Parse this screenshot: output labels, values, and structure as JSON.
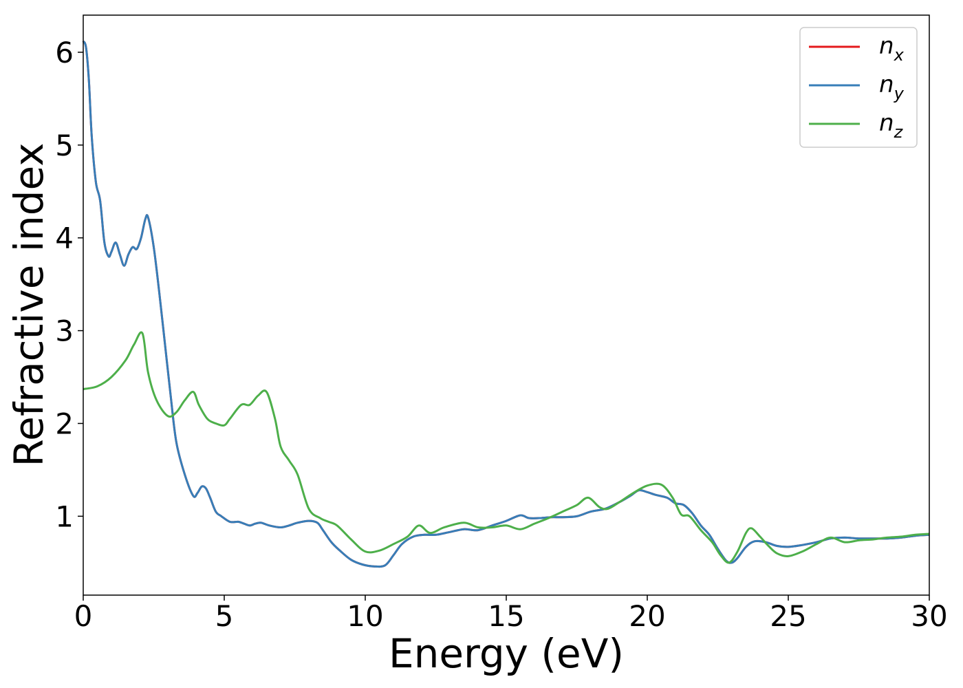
{
  "chart_data": {
    "type": "line",
    "xlabel": "Energy (eV)",
    "ylabel": "Refractive index",
    "xlim": [
      0,
      30
    ],
    "ylim": [
      0.15,
      6.4
    ],
    "xticks": [
      "0",
      "5",
      "10",
      "15",
      "20",
      "25",
      "30"
    ],
    "yticks": [
      "1",
      "2",
      "3",
      "4",
      "5",
      "6"
    ],
    "grid": false,
    "legend_position": "top-right",
    "legend": [
      {
        "symbol": "n",
        "subscript": "x",
        "color": "#e41a1c"
      },
      {
        "symbol": "n",
        "subscript": "y",
        "color": "#377eb8"
      },
      {
        "symbol": "n",
        "subscript": "z",
        "color": "#4daf4a"
      }
    ],
    "series": [
      {
        "name": "n_x",
        "color": "#e41a1c",
        "x": [
          0,
          0.1,
          0.2,
          0.3,
          0.45,
          0.6,
          0.75,
          0.9,
          1.0,
          1.15,
          1.3,
          1.45,
          1.6,
          1.75,
          1.9,
          2.05,
          2.2,
          2.3,
          2.5,
          2.7,
          2.9,
          3.1,
          3.3,
          3.6,
          3.9,
          4.05,
          4.2,
          4.35,
          4.5,
          4.7,
          4.9,
          5.2,
          5.5,
          5.7,
          5.9,
          6.1,
          6.3,
          6.6,
          7.0,
          7.3,
          7.6,
          8.0,
          8.3,
          8.5,
          8.8,
          9.1,
          9.5,
          9.9,
          10.3,
          10.7,
          11.0,
          11.3,
          11.7,
          12.1,
          12.5,
          13.0,
          13.5,
          14.0,
          14.5,
          15.0,
          15.5,
          15.8,
          16.2,
          16.6,
          17.0,
          17.5,
          18.0,
          18.5,
          19.0,
          19.4,
          19.7,
          20.0,
          20.3,
          20.7,
          21.0,
          21.3,
          21.6,
          21.9,
          22.2,
          22.5,
          22.8,
          23.0,
          23.2,
          23.5,
          23.8,
          24.2,
          24.6,
          25.0,
          25.5,
          26.0,
          26.5,
          27.0,
          27.5,
          28.0,
          28.5,
          29.0,
          29.5,
          30.0
        ],
        "y": [
          6.12,
          6.05,
          5.7,
          5.1,
          4.6,
          4.4,
          3.95,
          3.8,
          3.85,
          3.95,
          3.82,
          3.7,
          3.82,
          3.9,
          3.88,
          4.0,
          4.2,
          4.22,
          3.9,
          3.4,
          2.85,
          2.3,
          1.8,
          1.45,
          1.22,
          1.25,
          1.32,
          1.3,
          1.2,
          1.05,
          1.0,
          0.94,
          0.94,
          0.92,
          0.9,
          0.92,
          0.93,
          0.9,
          0.88,
          0.9,
          0.93,
          0.95,
          0.93,
          0.85,
          0.72,
          0.63,
          0.53,
          0.48,
          0.46,
          0.47,
          0.58,
          0.7,
          0.78,
          0.8,
          0.8,
          0.83,
          0.86,
          0.85,
          0.9,
          0.95,
          1.01,
          0.98,
          0.98,
          0.99,
          0.99,
          1.0,
          1.05,
          1.08,
          1.15,
          1.22,
          1.28,
          1.26,
          1.23,
          1.2,
          1.14,
          1.12,
          1.03,
          0.9,
          0.8,
          0.65,
          0.52,
          0.5,
          0.55,
          0.67,
          0.73,
          0.72,
          0.68,
          0.67,
          0.69,
          0.72,
          0.76,
          0.77,
          0.76,
          0.76,
          0.76,
          0.77,
          0.79,
          0.8
        ]
      },
      {
        "name": "n_y",
        "color": "#377eb8",
        "x": [
          0,
          0.1,
          0.2,
          0.3,
          0.45,
          0.6,
          0.75,
          0.9,
          1.0,
          1.15,
          1.3,
          1.45,
          1.6,
          1.75,
          1.9,
          2.05,
          2.2,
          2.3,
          2.5,
          2.7,
          2.9,
          3.1,
          3.3,
          3.6,
          3.9,
          4.05,
          4.2,
          4.35,
          4.5,
          4.7,
          4.9,
          5.2,
          5.5,
          5.7,
          5.9,
          6.1,
          6.3,
          6.6,
          7.0,
          7.3,
          7.6,
          8.0,
          8.3,
          8.5,
          8.8,
          9.1,
          9.5,
          9.9,
          10.3,
          10.7,
          11.0,
          11.3,
          11.7,
          12.1,
          12.5,
          13.0,
          13.5,
          14.0,
          14.5,
          15.0,
          15.5,
          15.8,
          16.2,
          16.6,
          17.0,
          17.5,
          18.0,
          18.5,
          19.0,
          19.4,
          19.7,
          20.0,
          20.3,
          20.7,
          21.0,
          21.3,
          21.6,
          21.9,
          22.2,
          22.5,
          22.8,
          23.0,
          23.2,
          23.5,
          23.8,
          24.2,
          24.6,
          25.0,
          25.5,
          26.0,
          26.5,
          27.0,
          27.5,
          28.0,
          28.5,
          29.0,
          29.5,
          30.0
        ],
        "y": [
          6.12,
          6.05,
          5.7,
          5.1,
          4.6,
          4.4,
          3.95,
          3.8,
          3.85,
          3.95,
          3.82,
          3.7,
          3.82,
          3.9,
          3.88,
          4.0,
          4.2,
          4.22,
          3.9,
          3.4,
          2.85,
          2.3,
          1.8,
          1.45,
          1.22,
          1.25,
          1.32,
          1.3,
          1.2,
          1.05,
          1.0,
          0.94,
          0.94,
          0.92,
          0.9,
          0.92,
          0.93,
          0.9,
          0.88,
          0.9,
          0.93,
          0.95,
          0.93,
          0.85,
          0.72,
          0.63,
          0.53,
          0.48,
          0.46,
          0.47,
          0.58,
          0.7,
          0.78,
          0.8,
          0.8,
          0.83,
          0.86,
          0.85,
          0.9,
          0.95,
          1.01,
          0.98,
          0.98,
          0.99,
          0.99,
          1.0,
          1.05,
          1.08,
          1.15,
          1.22,
          1.28,
          1.26,
          1.23,
          1.2,
          1.14,
          1.12,
          1.03,
          0.9,
          0.8,
          0.65,
          0.52,
          0.5,
          0.55,
          0.67,
          0.73,
          0.72,
          0.68,
          0.67,
          0.69,
          0.72,
          0.76,
          0.77,
          0.76,
          0.76,
          0.76,
          0.77,
          0.79,
          0.8
        ]
      },
      {
        "name": "n_z",
        "color": "#4daf4a",
        "x": [
          0,
          0.5,
          1.0,
          1.5,
          1.8,
          2.1,
          2.3,
          2.6,
          3.0,
          3.3,
          3.6,
          3.9,
          4.1,
          4.4,
          4.7,
          5.0,
          5.2,
          5.6,
          5.9,
          6.2,
          6.5,
          6.8,
          7.0,
          7.3,
          7.6,
          8.0,
          8.4,
          8.7,
          9.0,
          9.5,
          10.0,
          10.5,
          11.0,
          11.5,
          11.9,
          12.3,
          12.8,
          13.5,
          14.0,
          14.5,
          15.0,
          15.5,
          16.0,
          16.5,
          17.0,
          17.5,
          17.9,
          18.3,
          18.6,
          19.0,
          19.5,
          20.0,
          20.5,
          20.9,
          21.2,
          21.5,
          21.9,
          22.3,
          22.6,
          22.9,
          23.2,
          23.5,
          23.7,
          24.0,
          24.3,
          24.6,
          25.0,
          25.5,
          26.0,
          26.5,
          27.0,
          27.5,
          28.0,
          28.5,
          29.0,
          29.5,
          30.0
        ],
        "y": [
          2.37,
          2.4,
          2.5,
          2.68,
          2.85,
          2.97,
          2.55,
          2.25,
          2.08,
          2.12,
          2.25,
          2.34,
          2.2,
          2.05,
          2.0,
          1.98,
          2.05,
          2.2,
          2.2,
          2.3,
          2.34,
          2.05,
          1.75,
          1.6,
          1.45,
          1.08,
          0.98,
          0.94,
          0.9,
          0.75,
          0.62,
          0.63,
          0.7,
          0.78,
          0.9,
          0.82,
          0.88,
          0.93,
          0.88,
          0.88,
          0.9,
          0.86,
          0.92,
          0.98,
          1.05,
          1.12,
          1.2,
          1.1,
          1.08,
          1.15,
          1.25,
          1.33,
          1.34,
          1.2,
          1.02,
          1.0,
          0.85,
          0.72,
          0.58,
          0.5,
          0.62,
          0.82,
          0.87,
          0.78,
          0.68,
          0.6,
          0.57,
          0.62,
          0.7,
          0.77,
          0.72,
          0.74,
          0.75,
          0.77,
          0.78,
          0.8,
          0.81
        ]
      }
    ]
  }
}
